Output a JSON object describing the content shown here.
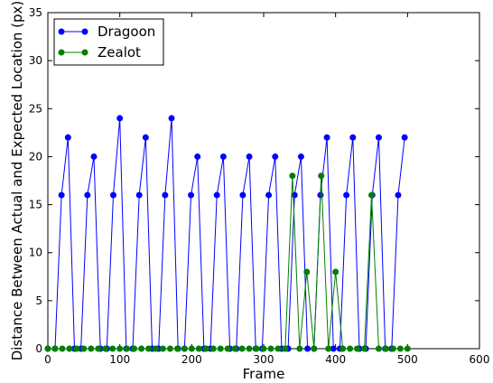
{
  "chart_data": {
    "type": "line",
    "title": "",
    "xlabel": "Frame",
    "ylabel": "Distance Between Actual and Expected Location (px)",
    "xlim": [
      0,
      600
    ],
    "ylim": [
      0,
      35
    ],
    "xticks": [
      "0",
      "100",
      "200",
      "300",
      "400",
      "500",
      "600"
    ],
    "yticks": [
      "0",
      "5",
      "10",
      "15",
      "20",
      "25",
      "30",
      "35"
    ],
    "legend_position": "top-left",
    "grid": false,
    "series": [
      {
        "name": "Dragoon",
        "color": "#0000ff",
        "x": [
          0,
          10,
          19,
          28,
          37,
          46,
          55,
          64,
          73,
          82,
          91,
          100,
          109,
          118,
          127,
          136,
          145,
          154,
          163,
          172,
          181,
          190,
          199,
          208,
          217,
          226,
          235,
          244,
          253,
          262,
          271,
          280,
          289,
          298,
          307,
          316,
          325,
          334,
          343,
          352,
          361,
          370,
          379,
          388,
          397,
          406,
          415,
          424,
          433,
          442,
          451,
          460,
          469,
          478,
          487,
          496
        ],
        "y": [
          0,
          0,
          16,
          22,
          0,
          0,
          16,
          20,
          0,
          0,
          16,
          24,
          0,
          0,
          16,
          22,
          0,
          0,
          16,
          24,
          0,
          0,
          16,
          20,
          0,
          0,
          16,
          20,
          0,
          0,
          16,
          20,
          0,
          0,
          16,
          20,
          0,
          0,
          16,
          20,
          0,
          0,
          16,
          22,
          0,
          0,
          16,
          22,
          0,
          0,
          16,
          22,
          0,
          0,
          16,
          22
        ]
      },
      {
        "name": "Zealot",
        "color": "#007f00",
        "x": [
          0,
          10,
          20,
          30,
          40,
          50,
          60,
          70,
          80,
          90,
          100,
          110,
          120,
          130,
          140,
          150,
          160,
          170,
          180,
          190,
          200,
          210,
          220,
          230,
          240,
          250,
          260,
          270,
          280,
          290,
          300,
          310,
          320,
          330,
          340,
          350,
          360,
          370,
          380,
          390,
          400,
          410,
          420,
          430,
          440,
          450,
          460,
          470,
          480,
          490,
          500
        ],
        "y": [
          0,
          0,
          0,
          0,
          0,
          0,
          0,
          0,
          0,
          0,
          0,
          0,
          0,
          0,
          0,
          0,
          0,
          0,
          0,
          0,
          0,
          0,
          0,
          0,
          0,
          0,
          0,
          0,
          0,
          0,
          0,
          0,
          0,
          0,
          18,
          0,
          8,
          0,
          18,
          0,
          8,
          0,
          0,
          0,
          0,
          16,
          0,
          0,
          0,
          0,
          0
        ]
      }
    ]
  }
}
